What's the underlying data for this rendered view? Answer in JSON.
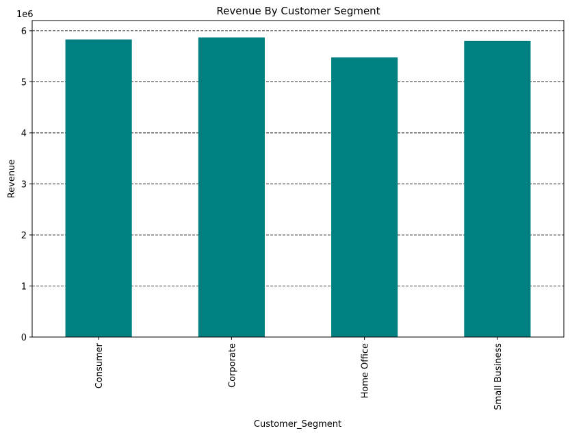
{
  "chart_data": {
    "type": "bar",
    "title": "Revenue By Customer Segment",
    "xlabel": "Customer_Segment",
    "ylabel": "Revenue",
    "y_offset_label": "1e6",
    "categories": [
      "Consumer",
      "Corporate",
      "Home Office",
      "Small Business"
    ],
    "values": [
      5830000,
      5870000,
      5480000,
      5800000
    ],
    "ylim": [
      0,
      6200000
    ],
    "yticks": [
      0,
      1000000,
      2000000,
      3000000,
      4000000,
      5000000,
      6000000
    ],
    "ytick_labels": [
      "0",
      "1",
      "2",
      "3",
      "4",
      "5",
      "6"
    ],
    "grid": "y-dashed",
    "bar_color": "#008080"
  }
}
